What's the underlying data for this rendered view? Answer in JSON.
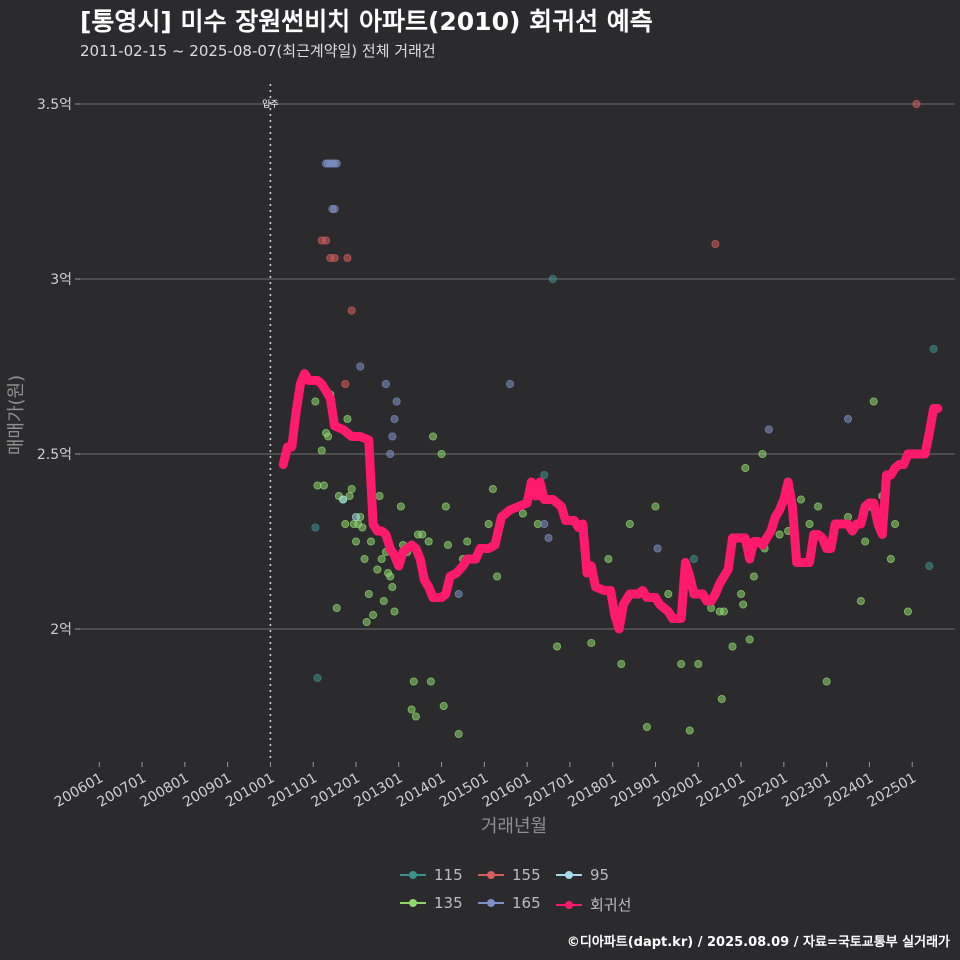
{
  "title": "[통영시] 미수 장원썬비치 아파트(2010) 회귀선 예측",
  "subtitle": "2011-02-15 ~ 2025-08-07(최근계약일) 전체 거래건",
  "footer": "©디아파트(dapt.kr) / 2025.08.09 / 자료=국토교통부 실거래가",
  "colors": {
    "background": "#2b2b2d",
    "grid": "#6e6e6e",
    "vline": "#cccccc",
    "regression": "#ff1a6e",
    "s115": "#3f8f8c",
    "s135": "#8ed86b",
    "s155": "#d85c5c",
    "s165": "#7d8fc7",
    "s95": "#a8d8ea"
  },
  "chart_data": {
    "type": "scatter",
    "xlabel": "거래년월",
    "ylabel": "매매가(원)",
    "x_ticks": [
      "200601",
      "200701",
      "200801",
      "200901",
      "201001",
      "201101",
      "201201",
      "201301",
      "201401",
      "201501",
      "201601",
      "201701",
      "201801",
      "201901",
      "202001",
      "202101",
      "202201",
      "202301",
      "202401",
      "202501"
    ],
    "xlim": [
      2005.55,
      2026.0
    ],
    "y_ticks": [
      {
        "value": 2.0,
        "label": "2억"
      },
      {
        "value": 2.5,
        "label": "2.5억"
      },
      {
        "value": 3.0,
        "label": "3억"
      },
      {
        "value": 3.5,
        "label": "3.5억"
      }
    ],
    "ylim": [
      1.62,
      3.62
    ],
    "move_in": {
      "year": 2010.0,
      "label": "입주"
    },
    "legend": [
      {
        "key": "s115",
        "label": "115"
      },
      {
        "key": "s155",
        "label": "155"
      },
      {
        "key": "s95",
        "label": "95"
      },
      {
        "key": "s135",
        "label": "135"
      },
      {
        "key": "s165",
        "label": "165"
      },
      {
        "key": "regression",
        "label": "회귀선"
      }
    ],
    "series": [
      {
        "name": "115",
        "color_key": "s115",
        "points": [
          [
            2011.05,
            2.29
          ],
          [
            2011.1,
            1.86
          ],
          [
            2016.4,
            2.44
          ],
          [
            2016.6,
            3.0
          ],
          [
            2019.9,
            2.2
          ],
          [
            2025.5,
            2.8
          ],
          [
            2025.4,
            2.18
          ]
        ]
      },
      {
        "name": "135",
        "color_key": "s135",
        "points": [
          [
            2011.05,
            2.65
          ],
          [
            2011.1,
            2.41
          ],
          [
            2011.2,
            2.51
          ],
          [
            2011.25,
            2.41
          ],
          [
            2011.3,
            2.56
          ],
          [
            2011.35,
            2.55
          ],
          [
            2011.4,
            2.67
          ],
          [
            2011.55,
            2.06
          ],
          [
            2011.6,
            2.38
          ],
          [
            2011.7,
            2.37
          ],
          [
            2011.75,
            2.3
          ],
          [
            2011.8,
            2.6
          ],
          [
            2011.85,
            2.38
          ],
          [
            2011.9,
            2.4
          ],
          [
            2011.95,
            2.3
          ],
          [
            2012.0,
            2.25
          ],
          [
            2012.05,
            2.3
          ],
          [
            2012.1,
            2.32
          ],
          [
            2012.15,
            2.29
          ],
          [
            2012.2,
            2.2
          ],
          [
            2012.25,
            2.02
          ],
          [
            2012.3,
            2.1
          ],
          [
            2012.35,
            2.25
          ],
          [
            2012.4,
            2.04
          ],
          [
            2012.5,
            2.17
          ],
          [
            2012.55,
            2.38
          ],
          [
            2012.6,
            2.2
          ],
          [
            2012.65,
            2.08
          ],
          [
            2012.7,
            2.22
          ],
          [
            2012.75,
            2.16
          ],
          [
            2012.8,
            2.15
          ],
          [
            2012.85,
            2.12
          ],
          [
            2012.9,
            2.05
          ],
          [
            2013.05,
            2.35
          ],
          [
            2013.1,
            2.24
          ],
          [
            2013.2,
            2.22
          ],
          [
            2013.3,
            1.77
          ],
          [
            2013.35,
            1.85
          ],
          [
            2013.4,
            1.75
          ],
          [
            2013.45,
            2.27
          ],
          [
            2013.55,
            2.27
          ],
          [
            2013.7,
            2.25
          ],
          [
            2013.75,
            1.85
          ],
          [
            2013.8,
            2.55
          ],
          [
            2014.0,
            2.5
          ],
          [
            2014.05,
            1.78
          ],
          [
            2014.1,
            2.35
          ],
          [
            2014.15,
            2.24
          ],
          [
            2014.4,
            1.7
          ],
          [
            2014.5,
            2.2
          ],
          [
            2014.6,
            2.25
          ],
          [
            2015.1,
            2.3
          ],
          [
            2015.2,
            2.4
          ],
          [
            2015.3,
            2.15
          ],
          [
            2015.9,
            2.33
          ],
          [
            2016.25,
            2.3
          ],
          [
            2016.3,
            2.38
          ],
          [
            2016.7,
            1.95
          ],
          [
            2017.2,
            2.3
          ],
          [
            2017.5,
            1.96
          ],
          [
            2017.9,
            2.2
          ],
          [
            2018.2,
            1.9
          ],
          [
            2018.4,
            2.3
          ],
          [
            2018.8,
            1.72
          ],
          [
            2019.0,
            2.35
          ],
          [
            2019.3,
            2.1
          ],
          [
            2019.6,
            1.9
          ],
          [
            2019.8,
            1.71
          ],
          [
            2020.0,
            1.9
          ],
          [
            2020.3,
            2.06
          ],
          [
            2020.5,
            2.05
          ],
          [
            2020.55,
            1.8
          ],
          [
            2020.6,
            2.05
          ],
          [
            2020.8,
            1.95
          ],
          [
            2021.0,
            2.1
          ],
          [
            2021.05,
            2.07
          ],
          [
            2021.1,
            2.46
          ],
          [
            2021.2,
            1.97
          ],
          [
            2021.3,
            2.15
          ],
          [
            2021.4,
            2.25
          ],
          [
            2021.5,
            2.5
          ],
          [
            2021.55,
            2.23
          ],
          [
            2021.9,
            2.27
          ],
          [
            2022.1,
            2.28
          ],
          [
            2022.4,
            2.37
          ],
          [
            2022.6,
            2.3
          ],
          [
            2022.8,
            2.35
          ],
          [
            2023.0,
            1.85
          ],
          [
            2023.3,
            2.3
          ],
          [
            2023.5,
            2.32
          ],
          [
            2023.8,
            2.08
          ],
          [
            2023.9,
            2.25
          ],
          [
            2024.0,
            2.35
          ],
          [
            2024.1,
            2.65
          ],
          [
            2024.3,
            2.38
          ],
          [
            2024.5,
            2.2
          ],
          [
            2024.6,
            2.3
          ],
          [
            2024.9,
            2.05
          ]
        ]
      },
      {
        "name": "155",
        "color_key": "s155",
        "points": [
          [
            2011.2,
            3.11
          ],
          [
            2011.3,
            3.11
          ],
          [
            2011.4,
            3.06
          ],
          [
            2011.5,
            3.06
          ],
          [
            2011.75,
            2.7
          ],
          [
            2011.8,
            3.06
          ],
          [
            2011.9,
            2.91
          ],
          [
            2020.4,
            3.1
          ],
          [
            2025.1,
            3.5
          ]
        ]
      },
      {
        "name": "165",
        "color_key": "s165",
        "points": [
          [
            2011.3,
            3.33
          ],
          [
            2011.35,
            3.33
          ],
          [
            2011.4,
            3.33
          ],
          [
            2011.45,
            3.33
          ],
          [
            2011.5,
            3.33
          ],
          [
            2011.55,
            3.33
          ],
          [
            2011.45,
            3.2
          ],
          [
            2011.5,
            3.2
          ],
          [
            2012.1,
            2.75
          ],
          [
            2012.7,
            2.7
          ],
          [
            2012.8,
            2.5
          ],
          [
            2012.85,
            2.55
          ],
          [
            2012.9,
            2.6
          ],
          [
            2012.95,
            2.65
          ],
          [
            2014.4,
            2.1
          ],
          [
            2015.6,
            2.7
          ],
          [
            2016.4,
            2.3
          ],
          [
            2016.5,
            2.26
          ],
          [
            2019.05,
            2.23
          ],
          [
            2021.65,
            2.57
          ],
          [
            2023.5,
            2.6
          ]
        ]
      },
      {
        "name": "95",
        "color_key": "s95",
        "points": [
          [
            2011.7,
            2.37
          ],
          [
            2012.0,
            2.32
          ]
        ]
      }
    ],
    "regression": [
      [
        2010.3,
        2.47
      ],
      [
        2010.4,
        2.52
      ],
      [
        2010.5,
        2.52
      ],
      [
        2010.6,
        2.62
      ],
      [
        2010.7,
        2.7
      ],
      [
        2010.8,
        2.73
      ],
      [
        2010.9,
        2.71
      ],
      [
        2011.0,
        2.71
      ],
      [
        2011.1,
        2.71
      ],
      [
        2011.2,
        2.7
      ],
      [
        2011.3,
        2.68
      ],
      [
        2011.4,
        2.66
      ],
      [
        2011.5,
        2.58
      ],
      [
        2011.7,
        2.57
      ],
      [
        2011.9,
        2.55
      ],
      [
        2012.1,
        2.55
      ],
      [
        2012.3,
        2.54
      ],
      [
        2012.4,
        2.3
      ],
      [
        2012.5,
        2.28
      ],
      [
        2012.6,
        2.28
      ],
      [
        2012.7,
        2.27
      ],
      [
        2012.8,
        2.23
      ],
      [
        2012.9,
        2.21
      ],
      [
        2013.0,
        2.18
      ],
      [
        2013.1,
        2.22
      ],
      [
        2013.3,
        2.24
      ],
      [
        2013.4,
        2.23
      ],
      [
        2013.5,
        2.2
      ],
      [
        2013.6,
        2.14
      ],
      [
        2013.7,
        2.12
      ],
      [
        2013.8,
        2.09
      ],
      [
        2014.0,
        2.09
      ],
      [
        2014.1,
        2.1
      ],
      [
        2014.2,
        2.15
      ],
      [
        2014.35,
        2.16
      ],
      [
        2014.5,
        2.18
      ],
      [
        2014.6,
        2.2
      ],
      [
        2014.8,
        2.2
      ],
      [
        2014.9,
        2.23
      ],
      [
        2015.1,
        2.23
      ],
      [
        2015.25,
        2.24
      ],
      [
        2015.4,
        2.32
      ],
      [
        2015.6,
        2.34
      ],
      [
        2015.8,
        2.35
      ],
      [
        2016.0,
        2.36
      ],
      [
        2016.1,
        2.42
      ],
      [
        2016.2,
        2.38
      ],
      [
        2016.3,
        2.42
      ],
      [
        2016.4,
        2.37
      ],
      [
        2016.6,
        2.37
      ],
      [
        2016.8,
        2.35
      ],
      [
        2016.9,
        2.31
      ],
      [
        2017.1,
        2.31
      ],
      [
        2017.2,
        2.29
      ],
      [
        2017.3,
        2.3
      ],
      [
        2017.4,
        2.16
      ],
      [
        2017.5,
        2.18
      ],
      [
        2017.6,
        2.12
      ],
      [
        2017.8,
        2.11
      ],
      [
        2017.95,
        2.11
      ],
      [
        2018.05,
        2.04
      ],
      [
        2018.15,
        2.0
      ],
      [
        2018.25,
        2.07
      ],
      [
        2018.4,
        2.1
      ],
      [
        2018.6,
        2.1
      ],
      [
        2018.7,
        2.11
      ],
      [
        2018.8,
        2.09
      ],
      [
        2019.0,
        2.09
      ],
      [
        2019.1,
        2.07
      ],
      [
        2019.3,
        2.05
      ],
      [
        2019.4,
        2.03
      ],
      [
        2019.6,
        2.03
      ],
      [
        2019.7,
        2.19
      ],
      [
        2019.8,
        2.15
      ],
      [
        2019.9,
        2.1
      ],
      [
        2020.1,
        2.1
      ],
      [
        2020.2,
        2.08
      ],
      [
        2020.3,
        2.08
      ],
      [
        2020.4,
        2.1
      ],
      [
        2020.5,
        2.13
      ],
      [
        2020.6,
        2.15
      ],
      [
        2020.7,
        2.17
      ],
      [
        2020.8,
        2.26
      ],
      [
        2020.9,
        2.26
      ],
      [
        2021.1,
        2.26
      ],
      [
        2021.2,
        2.2
      ],
      [
        2021.3,
        2.25
      ],
      [
        2021.4,
        2.25
      ],
      [
        2021.5,
        2.24
      ],
      [
        2021.6,
        2.26
      ],
      [
        2021.7,
        2.28
      ],
      [
        2021.8,
        2.32
      ],
      [
        2021.9,
        2.34
      ],
      [
        2022.0,
        2.37
      ],
      [
        2022.1,
        2.42
      ],
      [
        2022.2,
        2.35
      ],
      [
        2022.3,
        2.19
      ],
      [
        2022.5,
        2.19
      ],
      [
        2022.6,
        2.19
      ],
      [
        2022.7,
        2.27
      ],
      [
        2022.8,
        2.27
      ],
      [
        2022.9,
        2.26
      ],
      [
        2023.0,
        2.23
      ],
      [
        2023.1,
        2.23
      ],
      [
        2023.2,
        2.3
      ],
      [
        2023.3,
        2.3
      ],
      [
        2023.5,
        2.3
      ],
      [
        2023.6,
        2.28
      ],
      [
        2023.7,
        2.3
      ],
      [
        2023.8,
        2.3
      ],
      [
        2023.9,
        2.35
      ],
      [
        2024.0,
        2.36
      ],
      [
        2024.1,
        2.36
      ],
      [
        2024.2,
        2.3
      ],
      [
        2024.3,
        2.27
      ],
      [
        2024.4,
        2.44
      ],
      [
        2024.5,
        2.44
      ],
      [
        2024.6,
        2.46
      ],
      [
        2024.7,
        2.47
      ],
      [
        2024.8,
        2.47
      ],
      [
        2024.9,
        2.5
      ],
      [
        2025.1,
        2.5
      ],
      [
        2025.3,
        2.5
      ],
      [
        2025.4,
        2.56
      ],
      [
        2025.5,
        2.63
      ],
      [
        2025.6,
        2.63
      ]
    ]
  }
}
